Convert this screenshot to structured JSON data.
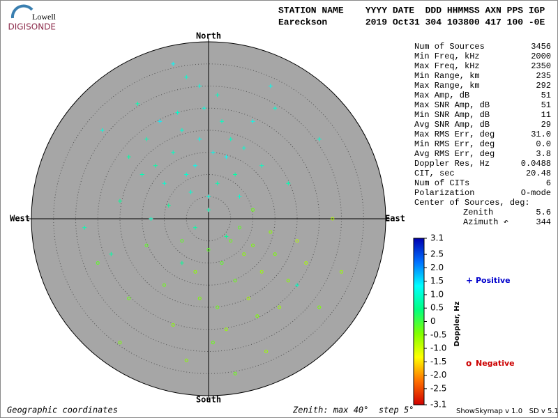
{
  "logo": {
    "top": "Lowell",
    "bottom": "DIGISONDE"
  },
  "header": {
    "line1": "STATION NAME    YYYY DATE  DDD HHMMSS AXN PPS IGP",
    "line2": "Eareckson       2019 Oct31 304 103800 417 100 -0E"
  },
  "stats": {
    "rows": [
      [
        "Num of Sources",
        "3456"
      ],
      [
        "Min Freq, kHz",
        "2000"
      ],
      [
        "Max Freq, kHz",
        "2350"
      ],
      [
        "Min Range, km",
        "235"
      ],
      [
        "Max Range, km",
        "292"
      ],
      [
        "Max Amp, dB",
        "51"
      ],
      [
        "Max SNR Amp, dB",
        "51"
      ],
      [
        "Min SNR Amp, dB",
        "11"
      ],
      [
        "Avg SNR Amp, dB",
        "29"
      ],
      [
        "Max RMS Err, deg",
        "31.0"
      ],
      [
        "Min RMS Err, deg",
        "0.0"
      ],
      [
        "Avg RMS Err, deg",
        "3.8"
      ],
      [
        "Doppler Res, Hz",
        "0.0488"
      ],
      [
        "CIT, sec",
        "20.48"
      ],
      [
        "Num of CITs",
        "6"
      ],
      [
        "Polarization",
        "O-mode"
      ]
    ],
    "center_title": "Center of Sources, deg:",
    "center_rows": [
      [
        "Zenith",
        "5.6"
      ],
      [
        "Azimuth ↶",
        "344"
      ]
    ]
  },
  "footer": {
    "left": "Geographic coordinates",
    "middle": "Zenith: max 40°  step 5°",
    "right": "ShowSkymap v 1.0   SD v 5.1"
  },
  "chart_data": {
    "type": "scatter",
    "directions": {
      "north": "North",
      "south": "South",
      "east": "East",
      "west": "West"
    },
    "zlim": [
      0,
      40
    ],
    "rings": [
      5,
      10,
      15,
      20,
      25,
      30,
      35
    ],
    "colorbar": {
      "label": "Doppler, Hz",
      "lim": [
        -3.1,
        3.1
      ],
      "ticks": [
        {
          "value": 3.1,
          "label": "3.1"
        },
        2.5,
        {
          "value": 2.0,
          "label": "2.0"
        },
        1.5,
        {
          "value": 1.0,
          "label": "1.0"
        },
        0.5,
        0,
        -0.5,
        {
          "value": -1.0,
          "label": "-1.0"
        },
        -1.5,
        {
          "value": -2.0,
          "label": "-2.0"
        },
        -2.5,
        {
          "value": -3.1,
          "label": "-3.1"
        }
      ],
      "colormap": [
        "#d00000",
        "#ff7000",
        "#ffff00",
        "#80ff00",
        "#00ff80",
        "#00ffff",
        "#0070ff",
        "#0000b0"
      ]
    },
    "series": [
      {
        "name": "Positive",
        "marker": "+",
        "legend_color": "#0000cc",
        "x": [
          -5,
          -3,
          -8,
          2,
          0,
          -10,
          -12,
          4,
          -6,
          -2,
          3,
          -14,
          -1,
          6,
          -4,
          -9,
          1,
          -7,
          5,
          -11,
          -15,
          8,
          -2,
          2,
          -18,
          10,
          -5,
          -16,
          12,
          -20,
          0,
          -3,
          7,
          -13,
          4,
          -24,
          15,
          -8,
          18,
          -22,
          20,
          -28,
          25,
          -6,
          14
        ],
        "y": [
          10,
          12,
          15,
          8,
          5,
          8,
          12,
          14,
          20,
          18,
          22,
          18,
          25,
          10,
          6,
          3,
          15,
          24,
          18,
          22,
          10,
          16,
          30,
          28,
          14,
          22,
          32,
          26,
          12,
          4,
          2,
          -2,
          5,
          0,
          -4,
          20,
          25,
          35,
          8,
          -8,
          -15,
          -2,
          18,
          -10,
          30
        ],
        "doppler": [
          1.0,
          1.2,
          0.9,
          0.8,
          1.1,
          1.0,
          0.7,
          1.3,
          1.0,
          1.2,
          0.9,
          0.8,
          1.1,
          0.7,
          1.0,
          0.6,
          1.2,
          1.0,
          0.9,
          1.4,
          0.8,
          1.0,
          1.1,
          0.9,
          0.7,
          1.2,
          1.0,
          0.8,
          0.9,
          0.6,
          0.8,
          0.7,
          1.0,
          0.9,
          0.6,
          1.1,
          1.0,
          1.3,
          0.8,
          0.7,
          0.9,
          0.8,
          1.0,
          0.6,
          1.2
        ]
      },
      {
        "name": "Negative",
        "marker": "o",
        "legend_color": "#cc0000",
        "x": [
          5,
          8,
          3,
          10,
          12,
          6,
          0,
          -3,
          15,
          9,
          2,
          -6,
          18,
          4,
          11,
          -10,
          14,
          20,
          7,
          -2,
          16,
          1,
          -8,
          22,
          -14,
          25,
          -18,
          13,
          -5,
          28,
          -20,
          6,
          30,
          -25,
          10
        ],
        "y": [
          -5,
          -8,
          -10,
          -6,
          -12,
          -14,
          -7,
          -12,
          -8,
          -18,
          -20,
          -5,
          -14,
          -25,
          -22,
          -15,
          -3,
          -5,
          -2,
          -18,
          -20,
          -28,
          -24,
          -10,
          -6,
          -20,
          -18,
          -30,
          -32,
          0,
          -28,
          -35,
          -12,
          -10,
          2
        ],
        "doppler": [
          -0.3,
          -0.5,
          -0.2,
          -0.4,
          -0.6,
          -0.3,
          -0.2,
          -0.5,
          -0.4,
          -0.7,
          -0.3,
          -0.2,
          -0.5,
          -0.6,
          -0.4,
          -0.3,
          -0.5,
          -0.8,
          -0.2,
          -0.4,
          -0.6,
          -0.3,
          -0.5,
          -0.7,
          -0.2,
          -0.4,
          -0.3,
          -0.6,
          -0.5,
          -0.8,
          -0.4,
          -0.3,
          -0.6,
          -0.2,
          -0.3
        ]
      }
    ]
  }
}
